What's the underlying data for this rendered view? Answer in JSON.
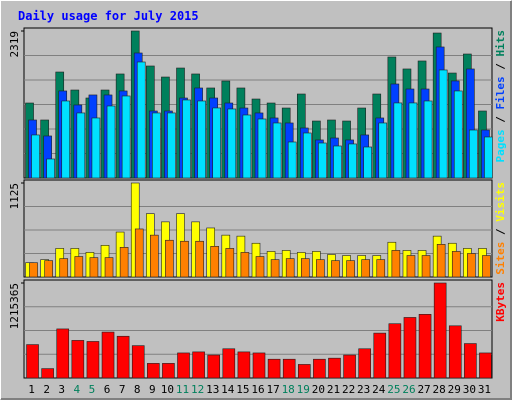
{
  "chart_data": [
    {
      "type": "bar",
      "title": "Daily usage for July 2015",
      "legend_separator": " / ",
      "ylim": [
        0,
        2319
      ],
      "yticks": [
        2319
      ],
      "grid_values": [
        386.5,
        773,
        1159.5,
        1546,
        1932.5
      ],
      "series": [
        {
          "name": "Hits",
          "color": "#00805C",
          "values": [
            1183,
            915,
            1672,
            1388,
            1262,
            1388,
            1641,
            2319,
            1767,
            1593,
            1735,
            1641,
            1420,
            1530,
            1420,
            1246,
            1183,
            1104,
            1325,
            899,
            915,
            899,
            1104,
            1325,
            1909,
            1720,
            1846,
            2287,
            1656,
            1956,
            1057
          ]
        },
        {
          "name": "Files",
          "color": "#0040FF",
          "values": [
            915,
            663,
            1373,
            1152,
            1310,
            1310,
            1373,
            1972,
            1057,
            1057,
            1262,
            1420,
            1262,
            1183,
            1104,
            1026,
            947,
            868,
            789,
            600,
            631,
            600,
            679,
            947,
            1483,
            1404,
            1404,
            2067,
            1531,
            1720,
            757
          ]
        },
        {
          "name": "Pages",
          "color": "#00E0FF",
          "values": [
            679,
            300,
            1215,
            1026,
            947,
            1136,
            1294,
            1830,
            1026,
            1026,
            1231,
            1215,
            1105,
            1089,
            994,
            931,
            868,
            568,
            710,
            552,
            505,
            537,
            489,
            868,
            1184,
            1184,
            1215,
            1704,
            1373,
            757,
            647
          ]
        }
      ]
    },
    {
      "type": "bar",
      "legend_separator": " / ",
      "ylim": [
        0,
        1125
      ],
      "yticks": [
        1125
      ],
      "grid_values": [
        281.25,
        562.5,
        843.75
      ],
      "series": [
        {
          "name": "Visits",
          "color": "#FFFF00",
          "values": [
            171,
            208,
            342,
            342,
            294,
            379,
            538,
            1125,
            758,
            660,
            758,
            660,
            587,
            501,
            489,
            404,
            306,
            318,
            294,
            306,
            269,
            257,
            257,
            257,
            416,
            318,
            318,
            489,
            404,
            342,
            342
          ]
        },
        {
          "name": "Sites",
          "color": "#FF8000",
          "values": [
            171,
            196,
            220,
            245,
            232,
            232,
            355,
            575,
            501,
            440,
            428,
            428,
            367,
            342,
            294,
            245,
            208,
            220,
            220,
            208,
            196,
            196,
            208,
            208,
            318,
            257,
            257,
            391,
            306,
            281,
            257
          ]
        }
      ]
    },
    {
      "type": "bar",
      "ylim": [
        0,
        1215365
      ],
      "yticks": [
        1215365
      ],
      "grid_values": [
        303841,
        607683,
        911524
      ],
      "categories": [
        "1",
        "2",
        "3",
        "4",
        "5",
        "6",
        "7",
        "8",
        "9",
        "10",
        "11",
        "12",
        "13",
        "14",
        "15",
        "16",
        "17",
        "18",
        "19",
        "20",
        "21",
        "22",
        "23",
        "24",
        "25",
        "26",
        "27",
        "28",
        "29",
        "30",
        "31"
      ],
      "category_colors": [
        "#000000",
        "#000000",
        "#000000",
        "#00805C",
        "#00805C",
        "#000000",
        "#000000",
        "#000000",
        "#000000",
        "#000000",
        "#00805C",
        "#00805C",
        "#000000",
        "#000000",
        "#000000",
        "#000000",
        "#000000",
        "#00805C",
        "#00805C",
        "#000000",
        "#000000",
        "#000000",
        "#000000",
        "#000000",
        "#00805C",
        "#00805C",
        "#000000",
        "#000000",
        "#000000",
        "#000000",
        "#000000"
      ],
      "series": [
        {
          "name": "KBytes",
          "color": "#FF0000",
          "values": [
            427392,
            120204,
            627732,
            480816,
            467460,
            587664,
            534240,
            414036,
            186984,
            186984,
            320544,
            333900,
            293832,
            373968,
            333900,
            320544,
            240408,
            240408,
            173628,
            240408,
            253764,
            293832,
            373968,
            574308,
            694512,
            774648,
            814716,
            1215365,
            667800,
            440748,
            320544
          ]
        }
      ]
    }
  ]
}
